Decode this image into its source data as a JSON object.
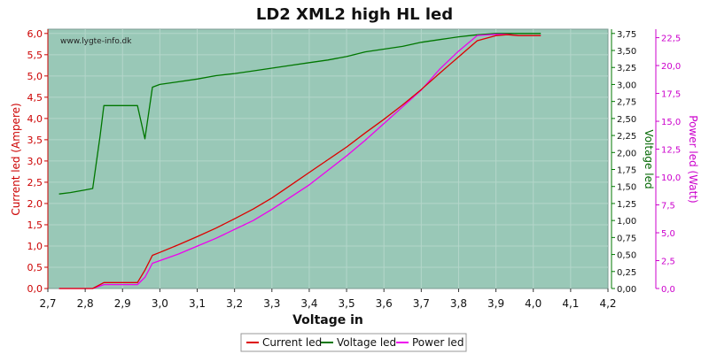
{
  "chart_data": {
    "type": "line",
    "title": "LD2 XML2 high HL led",
    "watermark": "www.lygte-info.dk",
    "xlabel": "Voltage in",
    "y1label": "Current led (Ampere)",
    "y2label": "Voltage led",
    "y3label": "Power led (Watt)",
    "xlim": [
      2.7,
      4.2
    ],
    "y1lim": [
      0,
      6.1
    ],
    "y2lim": [
      0,
      3.8125
    ],
    "y3lim": [
      0,
      23.26
    ],
    "xticks": [
      "2,7",
      "2,8",
      "2,9",
      "3,0",
      "3,1",
      "3,2",
      "3,3",
      "3,4",
      "3,5",
      "3,6",
      "3,7",
      "3,8",
      "3,9",
      "4,0",
      "4,1",
      "4,2"
    ],
    "y1ticks": [
      "0,0",
      "0,5",
      "1,0",
      "1,5",
      "2,0",
      "2,5",
      "3,0",
      "3,5",
      "4,0",
      "4,5",
      "5,0",
      "5,5",
      "6,0"
    ],
    "y2ticks": [
      "0,00",
      "0,25",
      "0,50",
      "0,75",
      "1,00",
      "1,25",
      "1,50",
      "1,75",
      "2,00",
      "2,25",
      "2,50",
      "2,75",
      "3,00",
      "3,25",
      "3,50",
      "3,75"
    ],
    "y3ticks": [
      "0,0",
      "2,5",
      "5,0",
      "7,5",
      "10,0",
      "12,5",
      "15,0",
      "17,5",
      "20,0",
      "22,5"
    ],
    "grid": true,
    "legend_position": "bottom-center",
    "plot_background": "#99c8b7",
    "series": [
      {
        "name": "Current led",
        "axis": "left",
        "color": "#dd0000",
        "x": [
          2.73,
          2.76,
          2.78,
          2.8,
          2.82,
          2.85,
          2.88,
          2.91,
          2.94,
          2.96,
          2.98,
          3.0,
          3.05,
          3.1,
          3.15,
          3.2,
          3.25,
          3.3,
          3.35,
          3.4,
          3.45,
          3.5,
          3.55,
          3.6,
          3.65,
          3.7,
          3.75,
          3.8,
          3.85,
          3.9,
          3.93,
          3.96,
          4.0,
          4.02
        ],
        "y": [
          0.0,
          0.0,
          0.0,
          0.0,
          0.0,
          0.14,
          0.14,
          0.14,
          0.14,
          0.43,
          0.78,
          0.85,
          1.03,
          1.22,
          1.42,
          1.64,
          1.87,
          2.13,
          2.43,
          2.73,
          3.03,
          3.33,
          3.66,
          3.98,
          4.32,
          4.68,
          5.07,
          5.45,
          5.83,
          5.95,
          5.97,
          5.95,
          5.95,
          5.95
        ]
      },
      {
        "name": "Voltage led",
        "axis": "right",
        "color": "#007700",
        "x": [
          2.73,
          2.76,
          2.78,
          2.8,
          2.82,
          2.84,
          2.85,
          2.88,
          2.91,
          2.94,
          2.96,
          2.98,
          3.0,
          3.05,
          3.1,
          3.15,
          3.2,
          3.25,
          3.3,
          3.35,
          3.4,
          3.45,
          3.5,
          3.55,
          3.6,
          3.65,
          3.7,
          3.75,
          3.8,
          3.85,
          3.9,
          3.93,
          3.96,
          4.0,
          4.02
        ],
        "y": [
          1.39,
          1.41,
          1.43,
          1.45,
          1.47,
          2.25,
          2.69,
          2.69,
          2.69,
          2.69,
          2.2,
          2.96,
          3.0,
          3.04,
          3.08,
          3.13,
          3.16,
          3.2,
          3.24,
          3.28,
          3.32,
          3.36,
          3.41,
          3.48,
          3.52,
          3.56,
          3.62,
          3.66,
          3.7,
          3.73,
          3.75,
          3.75,
          3.75,
          3.75,
          3.75
        ]
      },
      {
        "name": "Power led",
        "axis": "right2",
        "color": "#ee00ee",
        "x": [
          2.73,
          2.76,
          2.78,
          2.8,
          2.82,
          2.85,
          2.88,
          2.91,
          2.94,
          2.96,
          2.98,
          3.0,
          3.05,
          3.1,
          3.15,
          3.2,
          3.25,
          3.3,
          3.35,
          3.4,
          3.45,
          3.5,
          3.55,
          3.6,
          3.65,
          3.7,
          3.75,
          3.8,
          3.85,
          3.9,
          3.93,
          3.96,
          4.0,
          4.02
        ],
        "y": [
          0.0,
          0.0,
          0.0,
          0.0,
          0.0,
          0.35,
          0.35,
          0.35,
          0.35,
          1.0,
          2.26,
          2.5,
          3.1,
          3.8,
          4.5,
          5.3,
          6.1,
          7.1,
          8.2,
          9.3,
          10.6,
          11.9,
          13.3,
          14.8,
          16.3,
          17.8,
          19.7,
          21.3,
          22.7,
          22.8,
          22.8,
          22.7,
          22.7,
          22.7
        ]
      }
    ]
  }
}
